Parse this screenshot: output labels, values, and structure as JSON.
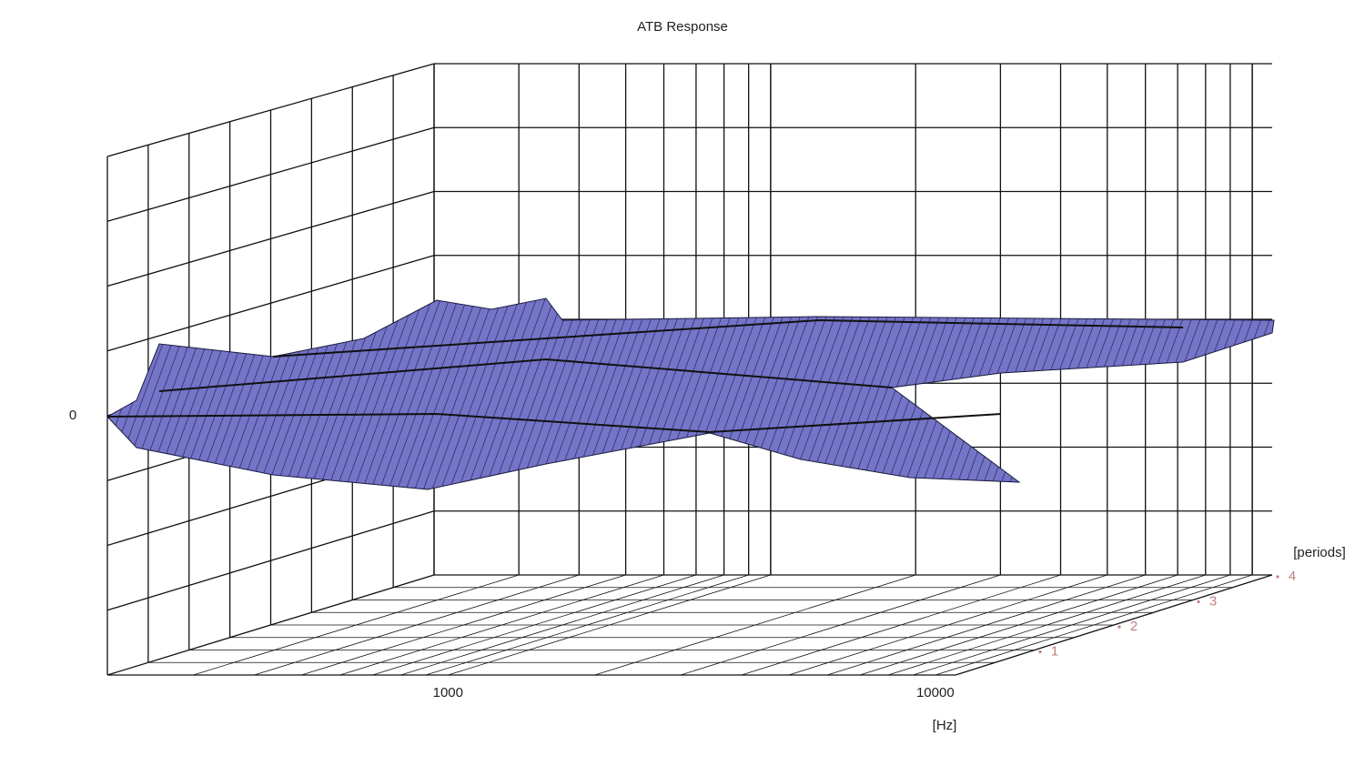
{
  "chart_data": {
    "type": "surface",
    "title": "ATB Response",
    "x_label": "[Hz]",
    "z_label": "[periods]",
    "xscale": "log",
    "xlim": [
      200,
      11000
    ],
    "xticks": [
      1000,
      10000
    ],
    "ylim": [
      -40,
      40
    ],
    "yticks": [
      0
    ],
    "zlim": [
      0,
      4
    ],
    "zticks": [
      1,
      2,
      3,
      4
    ],
    "color": "#7474c8",
    "grid": true
  }
}
